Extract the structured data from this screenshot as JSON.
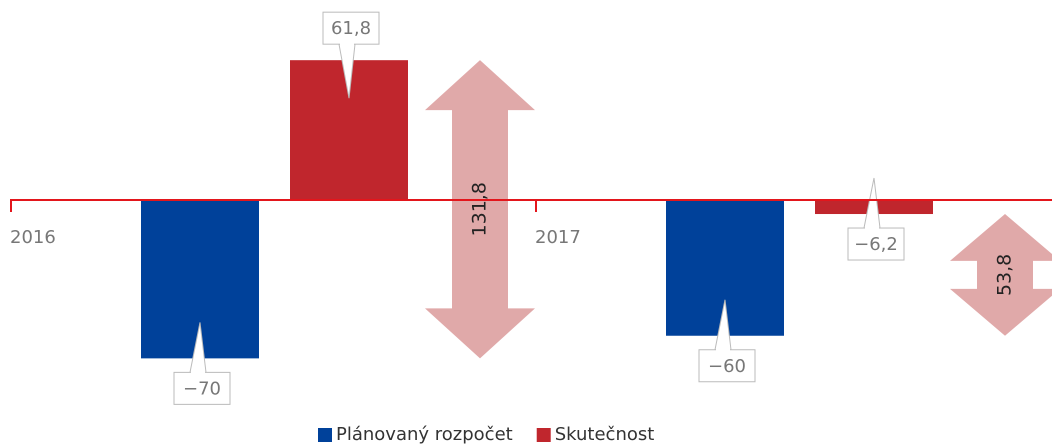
{
  "chart_data": {
    "type": "bar",
    "categories": [
      "2016",
      "2017"
    ],
    "series": [
      {
        "name": "Plánovaný rozpočet",
        "color": "#00419a",
        "values": [
          -70,
          -60
        ],
        "value_labels": [
          "−70",
          "−60"
        ]
      },
      {
        "name": "Skutečnost",
        "color": "#c0262d",
        "values": [
          61.8,
          -6.2
        ],
        "value_labels": [
          "61,8",
          "−6,2"
        ]
      }
    ],
    "differences": {
      "color": "#e0a9a9",
      "values": [
        131.8,
        53.8
      ],
      "value_labels": [
        "131,8",
        "53,8"
      ]
    },
    "ylim": [
      -80,
      80
    ],
    "zero_line_color": "#e3161c"
  }
}
